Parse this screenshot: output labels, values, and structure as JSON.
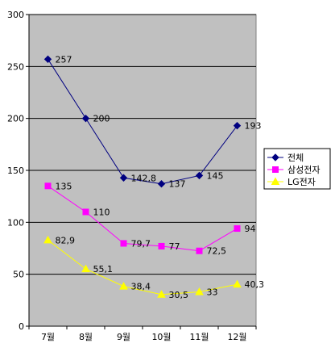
{
  "chart_data": {
    "type": "line",
    "title": "",
    "xlabel": "",
    "ylabel": "",
    "categories": [
      "7월",
      "8월",
      "9월",
      "10월",
      "11월",
      "12월"
    ],
    "ylim": [
      0,
      300
    ],
    "yticks": [
      0,
      50,
      100,
      150,
      200,
      250,
      300
    ],
    "grid": true,
    "legend_position": "right",
    "plot_background": "#c0c0c0",
    "series": [
      {
        "name": "전체",
        "values": [
          257,
          200,
          142.8,
          137,
          145,
          193
        ],
        "labels": [
          "257",
          "200",
          "142,8",
          "137",
          "145",
          "193"
        ],
        "color": "#000080",
        "marker": "diamond"
      },
      {
        "name": "삼성전자",
        "values": [
          135,
          110,
          79.7,
          77,
          72.5,
          94
        ],
        "labels": [
          "135",
          "110",
          "79,7",
          "77",
          "72,5",
          "94"
        ],
        "color": "#ff00ff",
        "marker": "square"
      },
      {
        "name": "LG전자",
        "values": [
          82.9,
          55.1,
          38.4,
          30.5,
          33,
          40.3
        ],
        "labels": [
          "82,9",
          "55,1",
          "38,4",
          "30,5",
          "33",
          "40,3"
        ],
        "color": "#ffff00",
        "marker": "triangle"
      }
    ]
  }
}
